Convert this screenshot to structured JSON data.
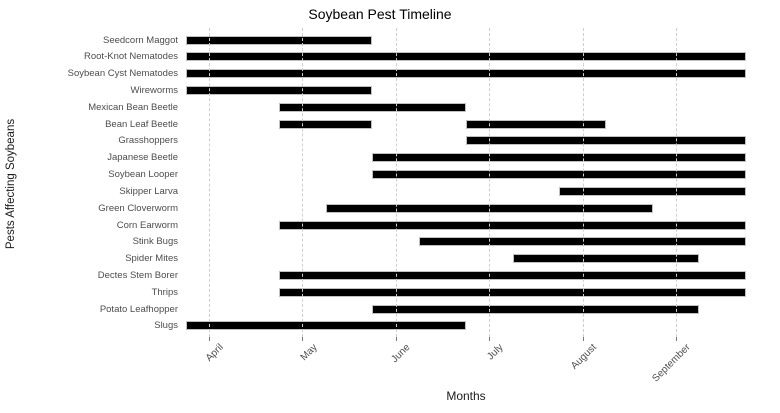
{
  "chart_data": {
    "type": "bar",
    "subtype": "horizontal-gantt-timeline",
    "title": "Soybean Pest Timeline",
    "xlabel": "Months",
    "ylabel": "Pests Affecting Soybeans",
    "x_unit": "month of year, decimal (4.0 = start of April; 0.25 ≈ one quarter month)",
    "xlim": [
      3.6,
      9.95
    ],
    "xticks": [
      {
        "value": 4,
        "label": "April"
      },
      {
        "value": 5,
        "label": "May"
      },
      {
        "value": 6,
        "label": "June"
      },
      {
        "value": 7,
        "label": "July"
      },
      {
        "value": 8,
        "label": "August"
      },
      {
        "value": 9,
        "label": "September"
      }
    ],
    "grid": {
      "orientation": "vertical",
      "style": "dashed",
      "color": "#cfcfcf",
      "drawn_over_bars": true
    },
    "legend": "none",
    "bar_color": "#000000",
    "bar_edge_color": "#c0c0c0",
    "bars": [
      {
        "pest": "Seedcorn Maggot",
        "periods": [
          [
            3.75,
            5.75
          ]
        ]
      },
      {
        "pest": "Root-Knot Nematodes",
        "periods": [
          [
            3.75,
            9.75
          ]
        ]
      },
      {
        "pest": "Soybean Cyst Nematodes",
        "periods": [
          [
            3.75,
            9.75
          ]
        ]
      },
      {
        "pest": "Wireworms",
        "periods": [
          [
            3.75,
            5.75
          ]
        ]
      },
      {
        "pest": "Mexican Bean Beetle",
        "periods": [
          [
            4.75,
            6.75
          ]
        ]
      },
      {
        "pest": "Bean Leaf Beetle",
        "periods": [
          [
            4.75,
            5.75
          ],
          [
            6.75,
            8.25
          ]
        ]
      },
      {
        "pest": "Grasshoppers",
        "periods": [
          [
            6.75,
            9.75
          ]
        ]
      },
      {
        "pest": "Japanese Beetle",
        "periods": [
          [
            5.75,
            9.75
          ]
        ]
      },
      {
        "pest": "Soybean Looper",
        "periods": [
          [
            5.75,
            9.75
          ]
        ]
      },
      {
        "pest": "Skipper Larva",
        "periods": [
          [
            7.75,
            9.75
          ]
        ]
      },
      {
        "pest": "Green Cloverworm",
        "periods": [
          [
            5.25,
            8.75
          ]
        ]
      },
      {
        "pest": "Corn Earworm",
        "periods": [
          [
            4.75,
            9.75
          ]
        ]
      },
      {
        "pest": "Stink Bugs",
        "periods": [
          [
            6.25,
            9.75
          ]
        ]
      },
      {
        "pest": "Spider Mites",
        "periods": [
          [
            7.25,
            9.25
          ]
        ]
      },
      {
        "pest": "Dectes Stem Borer",
        "periods": [
          [
            4.75,
            9.75
          ]
        ]
      },
      {
        "pest": "Thrips",
        "periods": [
          [
            4.75,
            9.75
          ]
        ]
      },
      {
        "pest": "Potato Leafhopper",
        "periods": [
          [
            5.75,
            9.25
          ]
        ]
      },
      {
        "pest": "Slugs",
        "periods": [
          [
            3.75,
            6.75
          ]
        ]
      }
    ]
  }
}
